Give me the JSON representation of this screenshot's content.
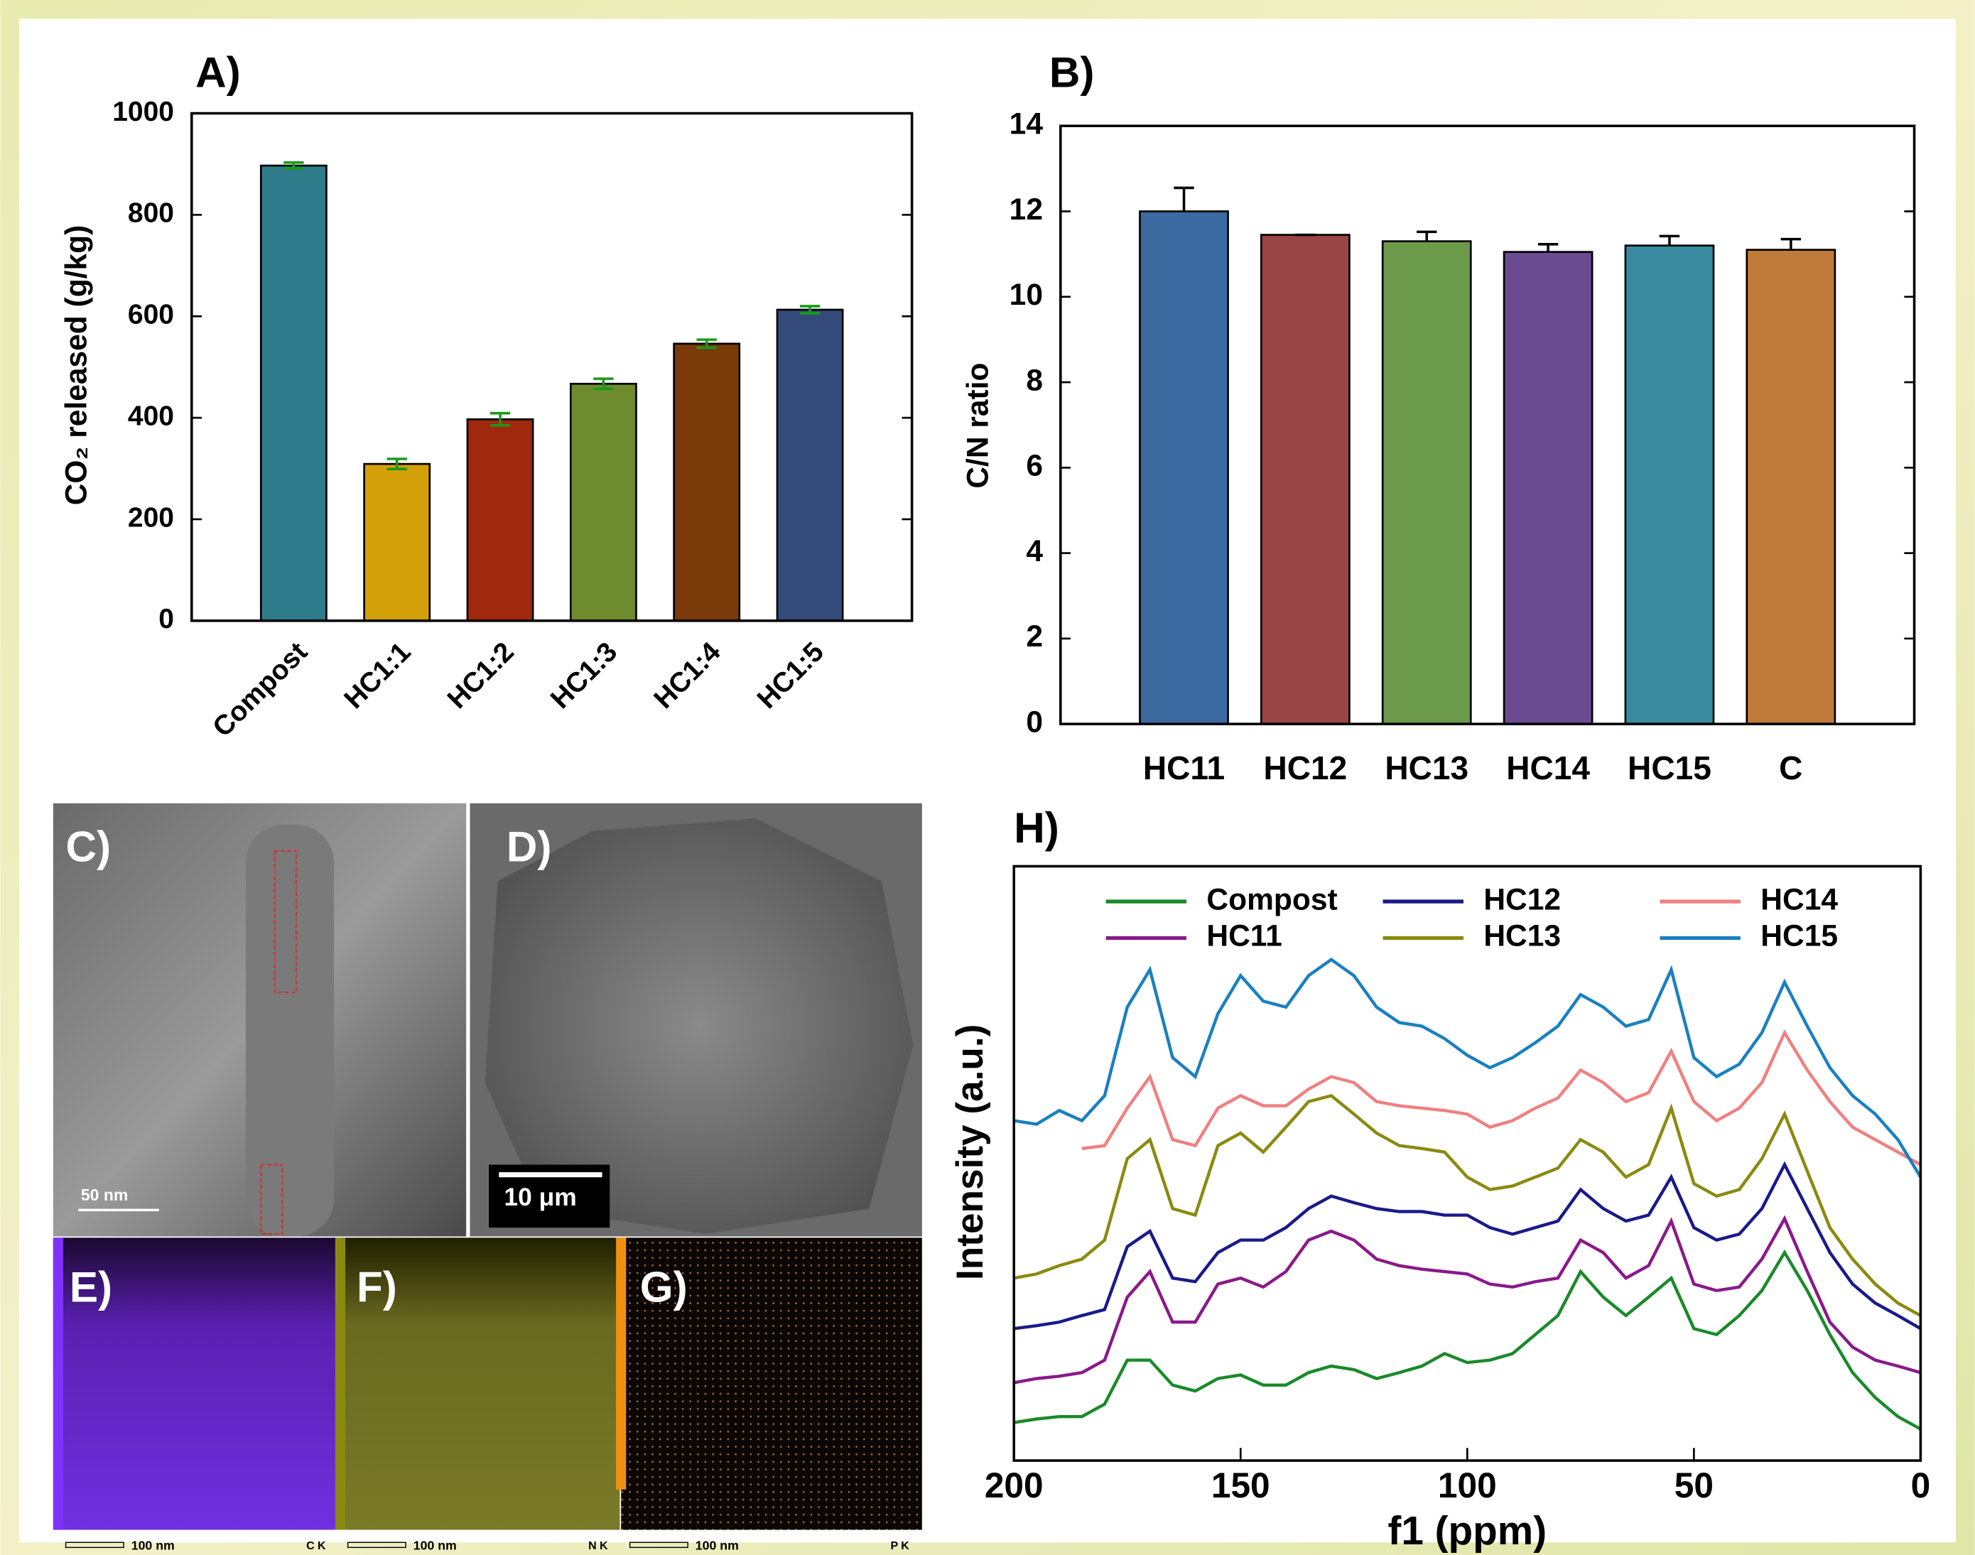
{
  "chart_data": [
    {
      "type": "bar",
      "title": "A)",
      "y_label": "CO₂ released (g/kg)",
      "categories": [
        "Compost",
        "HC1:1",
        "HC1:2",
        "HC1:3",
        "HC1:4",
        "HC1:5"
      ],
      "values": [
        897,
        309,
        397,
        467,
        546,
        613
      ],
      "errors": [
        6,
        10,
        12,
        10,
        8,
        7
      ],
      "colors": [
        "#2e7b8c",
        "#d4a00a",
        "#a0280c",
        "#6e8c2e",
        "#7a3a0a",
        "#344a7a"
      ],
      "error_color": "#1a9a1a",
      "ylim": [
        0,
        1000
      ],
      "yticks": [
        0,
        200,
        400,
        600,
        800,
        1000
      ]
    },
    {
      "type": "bar",
      "title": "B)",
      "y_label": "C/N ratio",
      "categories": [
        "HC11",
        "HC12",
        "HC13",
        "HC14",
        "HC15",
        "C"
      ],
      "values": [
        12.0,
        11.45,
        11.3,
        11.05,
        11.2,
        11.1
      ],
      "errors": [
        0.55,
        0,
        0.22,
        0.18,
        0.22,
        0.25
      ],
      "colors": [
        "#3a6aa0",
        "#9a4545",
        "#6a9a4a",
        "#6a4a90",
        "#3a8aa0",
        "#c07a3a"
      ],
      "error_color": "#000000",
      "ylim": [
        0,
        14
      ],
      "yticks": [
        0,
        2,
        4,
        6,
        8,
        10,
        12,
        14
      ]
    },
    {
      "type": "line",
      "title": "H)",
      "x_label": "f1 (ppm)",
      "y_label": "Intensity (a.u.)",
      "xlim": [
        200,
        0
      ],
      "xticks": [
        200,
        150,
        100,
        50,
        0
      ],
      "ylim": [
        0,
        100
      ],
      "x": [
        200,
        195,
        190,
        185,
        180,
        175,
        170,
        165,
        160,
        155,
        150,
        145,
        140,
        135,
        130,
        125,
        120,
        115,
        110,
        105,
        100,
        95,
        90,
        85,
        80,
        75,
        70,
        65,
        60,
        55,
        50,
        45,
        40,
        35,
        30,
        25,
        20,
        15,
        10,
        5,
        0
      ],
      "series": [
        {
          "name": "Compost",
          "color": "#1a8a2a",
          "values": [
            6.4,
            7.0,
            7.4,
            7.4,
            9.5,
            16.9,
            16.9,
            12.7,
            11.7,
            13.8,
            14.4,
            12.7,
            12.7,
            14.8,
            15.9,
            15.3,
            13.8,
            14.8,
            15.9,
            18.0,
            16.5,
            16.9,
            18.0,
            21.2,
            24.4,
            31.8,
            27.5,
            24.4,
            27.5,
            30.7,
            22.2,
            21.2,
            24.4,
            28.6,
            35.0,
            28.6,
            21.2,
            14.8,
            10.6,
            7.4,
            5.3
          ]
        },
        {
          "name": "HC11",
          "color": "#8a1a8a",
          "values": [
            13.1,
            13.8,
            14.2,
            14.8,
            16.9,
            27.5,
            31.8,
            23.3,
            23.3,
            29.7,
            30.7,
            29.2,
            31.8,
            37.1,
            38.6,
            37.1,
            33.9,
            32.8,
            32.2,
            31.8,
            31.4,
            29.7,
            29.2,
            30.1,
            30.7,
            37.1,
            35.0,
            30.7,
            32.8,
            40.3,
            29.7,
            28.6,
            29.2,
            33.9,
            40.7,
            31.8,
            23.3,
            19.1,
            16.9,
            15.9,
            14.8
          ]
        },
        {
          "name": "HC12",
          "color": "#1a1a8a",
          "values": [
            22.2,
            22.7,
            23.3,
            24.4,
            25.4,
            36.0,
            38.6,
            30.7,
            30.1,
            35.0,
            37.1,
            37.1,
            39.2,
            42.4,
            44.5,
            43.4,
            42.4,
            41.9,
            41.9,
            41.3,
            41.3,
            39.2,
            38.1,
            39.2,
            40.3,
            45.6,
            42.4,
            40.3,
            41.3,
            47.7,
            39.2,
            37.1,
            38.1,
            42.4,
            49.8,
            42.4,
            35.0,
            29.7,
            26.5,
            24.4,
            22.2
          ]
        },
        {
          "name": "HC13",
          "color": "#8a8a10",
          "values": [
            30.7,
            31.4,
            32.8,
            33.9,
            37.1,
            50.8,
            54.0,
            42.4,
            41.3,
            53.0,
            55.1,
            51.9,
            56.1,
            60.4,
            61.4,
            58.3,
            55.1,
            53.0,
            52.5,
            51.9,
            47.7,
            45.6,
            46.2,
            47.7,
            49.2,
            54.0,
            51.9,
            47.7,
            49.8,
            59.3,
            46.6,
            44.5,
            45.6,
            50.8,
            58.3,
            48.7,
            39.2,
            33.9,
            29.7,
            26.5,
            24.4
          ]
        },
        {
          "name": "HC14",
          "color": "#f08080",
          "values": [
            null,
            null,
            null,
            52.5,
            53.0,
            59.3,
            64.6,
            54.0,
            53.0,
            59.3,
            61.4,
            59.7,
            59.7,
            62.5,
            64.6,
            63.6,
            60.4,
            59.7,
            59.3,
            58.9,
            58.3,
            56.1,
            57.2,
            59.3,
            61.0,
            65.7,
            63.6,
            60.4,
            61.9,
            68.9,
            60.4,
            57.2,
            59.3,
            63.6,
            72.0,
            65.7,
            60.4,
            56.1,
            54.0,
            51.9,
            49.8
          ]
        },
        {
          "name": "HC15",
          "color": "#1a80c0",
          "values": [
            57.2,
            56.6,
            58.9,
            57.2,
            61.4,
            76.3,
            82.6,
            67.8,
            64.6,
            75.2,
            81.6,
            77.3,
            76.3,
            81.6,
            84.3,
            81.6,
            76.3,
            73.7,
            73.1,
            71.0,
            68.2,
            66.1,
            67.8,
            70.3,
            73.1,
            78.4,
            76.3,
            73.1,
            74.2,
            82.6,
            67.8,
            64.6,
            66.7,
            72.0,
            80.5,
            73.1,
            66.1,
            61.4,
            58.3,
            54.0,
            47.7
          ]
        }
      ]
    }
  ],
  "images": [
    {
      "label": "C)",
      "scale_bar": "50 nm"
    },
    {
      "label": "D)",
      "scale_bar": "10 μm"
    },
    {
      "label": "E)",
      "scale_bar": "100 nm",
      "element": "C K"
    },
    {
      "label": "F)",
      "scale_bar": "100 nm",
      "element": "N K"
    },
    {
      "label": "G)",
      "scale_bar": "100 nm",
      "element": "P K"
    }
  ]
}
